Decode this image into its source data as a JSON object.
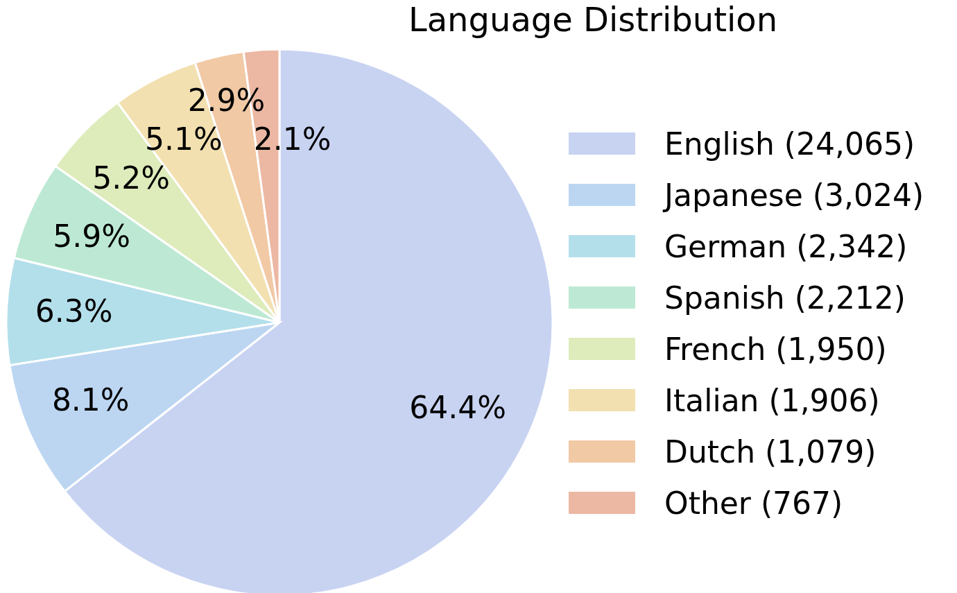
{
  "chart_data": {
    "type": "pie",
    "title": "Language Distribution",
    "categories": [
      "English (24,065)",
      "Japanese (3,024)",
      "German (2,342)",
      "Spanish (2,212)",
      "French (1,950)",
      "Italian (1,906)",
      "Dutch (1,079)",
      "Other (767)"
    ],
    "values": [
      64.4,
      8.1,
      6.3,
      5.9,
      5.2,
      5.1,
      2.9,
      2.1
    ],
    "colors": [
      "#c8d3f2",
      "#bcd6f2",
      "#b3dfeb",
      "#bde9d4",
      "#deebbb",
      "#f2e0b0",
      "#f1c9a5",
      "#ecb8a3"
    ],
    "value_labels": [
      "64.4%",
      "8.1%",
      "6.3%",
      "5.9%",
      "5.2%",
      "5.1%",
      "2.9%",
      "2.1%"
    ],
    "legend": "right"
  }
}
